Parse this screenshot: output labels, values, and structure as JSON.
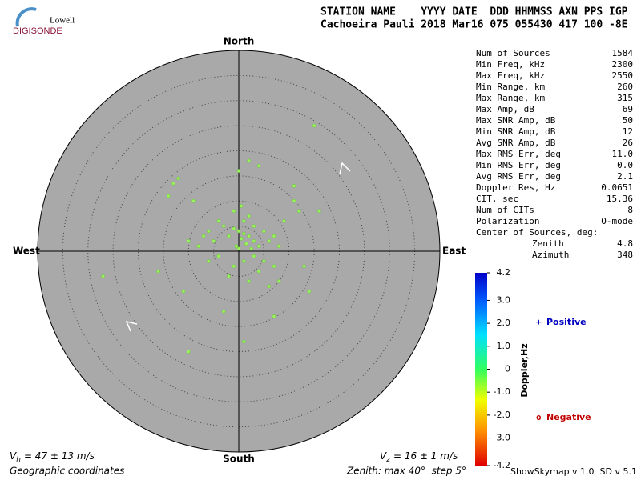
{
  "logo": {
    "brand": "Lowell",
    "product": "DIGISONDE"
  },
  "header": {
    "columns": "STATION NAME    YYYY DATE  DDD HHMMSS AXN PPS IGP",
    "values": "Cachoeira Pauli 2018 Mar16 075 055430 417 100 -8E"
  },
  "directions": {
    "north": "North",
    "south": "South",
    "west": "West",
    "east": "East"
  },
  "stats": [
    [
      "Num of Sources",
      "1584"
    ],
    [
      "Min Freq, kHz",
      "2300"
    ],
    [
      "Max Freq, kHz",
      "2550"
    ],
    [
      "Min Range, km",
      "260"
    ],
    [
      "Max Range, km",
      "315"
    ],
    [
      "Max Amp, dB",
      "69"
    ],
    [
      "Max SNR Amp, dB",
      "50"
    ],
    [
      "Min SNR Amp, dB",
      "12"
    ],
    [
      "Avg SNR Amp, dB",
      "26"
    ],
    [
      "Max RMS Err, deg",
      "11.0"
    ],
    [
      "Min RMS Err, deg",
      "0.0"
    ],
    [
      "Avg RMS Err, deg",
      "2.1"
    ],
    [
      "Doppler Res, Hz",
      "0.0651"
    ],
    [
      "CIT, sec",
      "15.36"
    ],
    [
      "Num of CITs",
      "8"
    ],
    [
      "Polarization",
      "O-mode"
    ]
  ],
  "center": {
    "title": "Center of Sources, deg:",
    "rows": [
      [
        "Zenith",
        "4.8"
      ],
      [
        "Azimuth",
        "348"
      ]
    ]
  },
  "colorbar": {
    "label": "Doppler,Hz",
    "clim": [
      -4.2,
      4.2
    ],
    "ticks": [
      4.2,
      {
        "value": 3,
        "label": "3.0"
      },
      {
        "value": 2,
        "label": "2.0"
      },
      {
        "value": 1,
        "label": "1.0"
      },
      0,
      {
        "value": -1,
        "label": "-1.0"
      },
      {
        "value": -2,
        "label": "-2.0"
      },
      {
        "value": -3,
        "label": "-3.0"
      },
      -4.2
    ]
  },
  "legend": {
    "positive": {
      "symbol": "+",
      "label": "Positive"
    },
    "negative": {
      "symbol": "o",
      "label": "Negative"
    }
  },
  "skymap": {
    "rmax": 40,
    "rings": [
      5,
      10,
      15,
      20,
      25,
      30,
      35
    ],
    "color": "#9cf25c",
    "x": [
      0,
      1,
      -1,
      0.5,
      2,
      -2,
      1.5,
      3,
      -0.5,
      0,
      2.5,
      4,
      -3,
      -4,
      1,
      2,
      -1,
      0.5,
      3,
      5,
      6,
      7,
      -5,
      -6,
      -7,
      -8,
      8,
      9,
      -10,
      -12,
      -13,
      3,
      1,
      -1,
      4,
      2,
      -2,
      5,
      7,
      -4,
      -6,
      11,
      12,
      14,
      13,
      -16,
      -27,
      -11,
      -10,
      1,
      7,
      16,
      11,
      15,
      -3,
      6,
      8,
      -9,
      -14,
      0,
      2,
      4
    ],
    "y": [
      4,
      3.5,
      4.5,
      2.5,
      3,
      3,
      1.5,
      2,
      1,
      0.5,
      0.5,
      1,
      5,
      6,
      6,
      7,
      8,
      9,
      5,
      4,
      2,
      3,
      2,
      4,
      3,
      1,
      1,
      6,
      2,
      14.5,
      13.5,
      -1,
      -2,
      -3,
      -4,
      -6,
      -5,
      -2,
      -3,
      -1,
      -2,
      10,
      8,
      -8,
      -3,
      -4,
      -5,
      -8,
      -20,
      -18,
      -13,
      8,
      13,
      25,
      -12,
      -7,
      -6,
      10,
      11,
      16,
      18,
      17
    ]
  },
  "footer": {
    "vh": {
      "symbol": "V",
      "sub": "h",
      "text": "= 47 ± 13 m/s"
    },
    "vz": {
      "symbol": "V",
      "sub": "z",
      "text": "= 16 ± 1 m/s"
    },
    "coords": "Geographic coordinates",
    "zenith": "Zenith: max 40°  step 5°",
    "version": "ShowSkymap v 1.0  SD v 5.1"
  }
}
